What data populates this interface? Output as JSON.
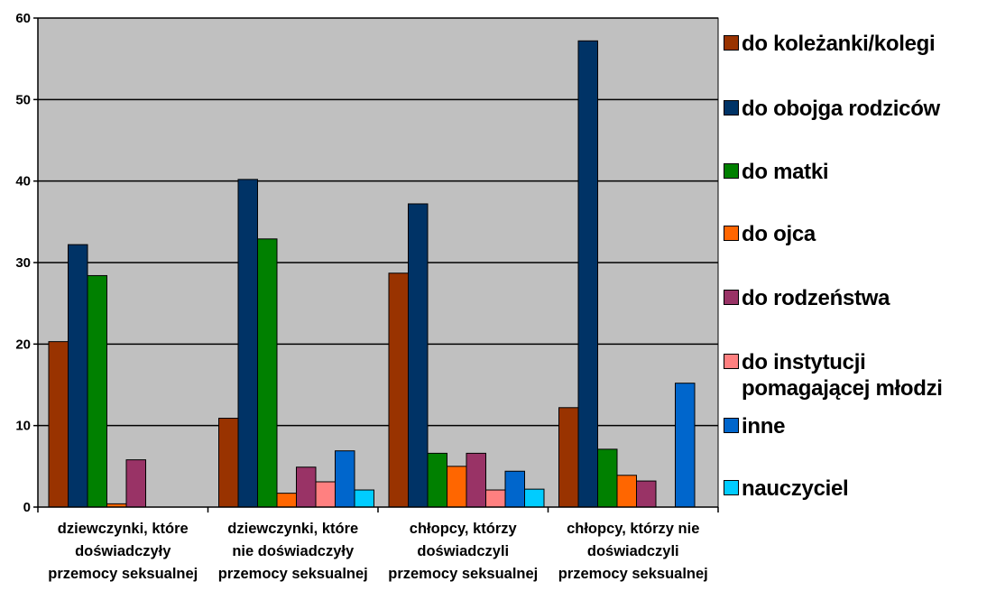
{
  "chart_data": {
    "type": "bar",
    "categories": [
      [
        "dziewczynki, które",
        "doświadczyły",
        "przemocy seksualnej"
      ],
      [
        "dziewczynki, które",
        "nie doświadczyły",
        "przemocy seksualnej"
      ],
      [
        "chłopcy, którzy",
        "doświadczyli",
        "przemocy seksualnej"
      ],
      [
        "chłopcy, którzy nie",
        "doświadczyli",
        "przemocy seksualnej"
      ]
    ],
    "series": [
      {
        "name": "do koleżanki/kolegi",
        "color": "#993300",
        "values": [
          20.3,
          10.9,
          28.7,
          12.2
        ]
      },
      {
        "name": "do obojga rodziców",
        "color": "#003366",
        "values": [
          32.2,
          40.2,
          37.2,
          57.2
        ]
      },
      {
        "name": "do matki",
        "color": "#008000",
        "values": [
          28.4,
          32.9,
          6.6,
          7.1
        ]
      },
      {
        "name": "do ojca",
        "color": "#ff6600",
        "values": [
          0.4,
          1.7,
          5.0,
          3.9
        ]
      },
      {
        "name": "do rodzeństwa",
        "color": "#993366",
        "values": [
          5.8,
          4.9,
          6.6,
          3.2
        ]
      },
      {
        "name": "do instytucji\npomagającej młodzi",
        "color": "#ff8080",
        "values": [
          0,
          3.1,
          2.1,
          0
        ]
      },
      {
        "name": "inne",
        "color": "#0066cc",
        "values": [
          0,
          6.9,
          4.4,
          15.2
        ]
      },
      {
        "name": "nauczyciel",
        "color": "#00ccff",
        "values": [
          0,
          2.1,
          2.2,
          0
        ]
      }
    ],
    "yticks": [
      "0",
      "10",
      "20",
      "30",
      "40",
      "50",
      "60"
    ],
    "ylim": [
      0,
      60
    ],
    "grid": true,
    "legend_position": "right",
    "colors": {
      "plot_background": "#c0c0c0",
      "gridline": "#000000"
    }
  }
}
